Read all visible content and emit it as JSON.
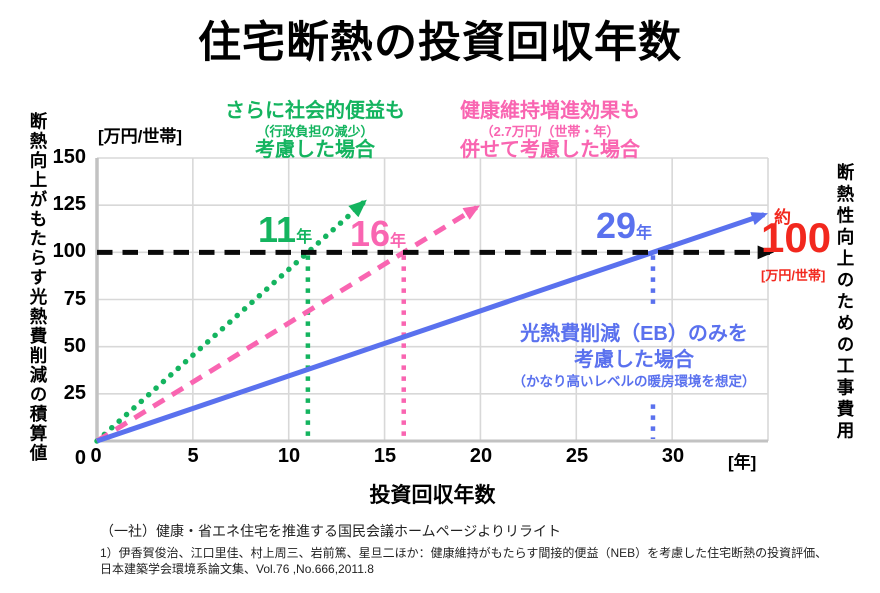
{
  "title": "住宅断熱の投資回収年数",
  "colors": {
    "green": "#14b45f",
    "pink": "#f965b1",
    "blue": "#5a71ee",
    "red": "#f2281e",
    "grid": "#d8d8d8",
    "axis": "#c2c2c2",
    "black": "#0a0a0a"
  },
  "y_axis": {
    "unit": "[万円/世帯]",
    "label": "断熱向上がもたらす光熱費削減の積算値",
    "ticks": [
      "150",
      "125",
      "100",
      "75",
      "50",
      "25",
      "0"
    ]
  },
  "x_axis": {
    "title": "投資回収年数",
    "unit": "[年]",
    "ticks": [
      "0",
      "5",
      "10",
      "15",
      "20",
      "25",
      "30"
    ]
  },
  "right_axis": {
    "label": "断熱性向上のための工事費用"
  },
  "cost_marker": {
    "approx": "約",
    "value": "100",
    "unit": "[万円/世帯]"
  },
  "annotations": {
    "social": {
      "line1": "さらに社会的便益も",
      "line2": "（行政負担の減少）",
      "line3": "考慮した場合"
    },
    "health": {
      "line1": "健康維持増進効果も",
      "line2": "（2.7万円/（世帯・年）",
      "line3": "併せて考慮した場合"
    },
    "energy": {
      "line1": "光熱費削減（EB）のみを",
      "line2": "考慮した場合",
      "line3": "（かなり高いレベルの暖房環境を想定）"
    }
  },
  "paybacks": {
    "social": {
      "years": "11",
      "suffix": "年"
    },
    "health": {
      "years": "16",
      "suffix": "年"
    },
    "energy": {
      "years": "29",
      "suffix": "年"
    }
  },
  "footer": {
    "source": "（一社）健康・省エネ住宅を推進する国民会議ホームページよりリライト",
    "note_line1": "1）伊香賀俊治、江口里佳、村上周三、岩前篤、星旦二ほか：健康維持がもたらす間接的便益（NEB）を考慮した住宅断熱の投資評価、",
    "note_line2": "日本建築学会環境系論文集、Vol.76 ,No.666,2011.8"
  },
  "chart_data": {
    "type": "line",
    "title": "住宅断熱の投資回収年数",
    "xlabel": "投資回収年数 [年]",
    "ylabel": "断熱向上がもたらす光熱費削減の積算値 [万円/世帯]",
    "xlim": [
      0,
      35
    ],
    "ylim": [
      0,
      150
    ],
    "x_ticks": [
      0,
      5,
      10,
      15,
      20,
      25,
      30
    ],
    "y_ticks": [
      0,
      25,
      50,
      75,
      100,
      125,
      150
    ],
    "grid": true,
    "legend_position": "none",
    "construction_cost": {
      "value": 100,
      "label": "約100 [万円/世帯]",
      "style": "black-dashed-horizontal-arrow"
    },
    "series": [
      {
        "name": "さらに社会的便益も（行政負担の減少）考慮した場合",
        "payback_years": 11,
        "slope_per_year": 9.09,
        "x_start": 0,
        "x_end": 13.9,
        "color_key": "green",
        "style": "dotted",
        "arrow_end": true
      },
      {
        "name": "健康維持増進効果も（2.7万円/（世帯・年）併せて考慮した場合",
        "payback_years": 16,
        "slope_per_year": 6.25,
        "x_start": 0,
        "x_end": 19.8,
        "color_key": "pink",
        "style": "dashed",
        "arrow_end": true
      },
      {
        "name": "光熱費削減（EB）のみを考慮した場合（かなり高いレベルの暖房環境を想定）",
        "payback_years": 29,
        "slope_per_year": 3.45,
        "x_start": 0,
        "x_end": 34.8,
        "color_key": "blue",
        "style": "solid",
        "arrow_end": true,
        "vline_gap": [
          70,
          21
        ]
      }
    ]
  }
}
